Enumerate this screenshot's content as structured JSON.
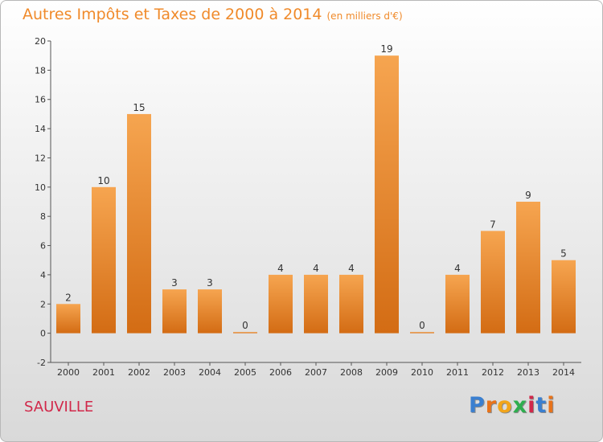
{
  "title": "Autres Impôts et Taxes de 2000 à 2014",
  "subtitle": "(en milliers d'€)",
  "town": "SAUVILLE",
  "brand": {
    "text": "Proxiti",
    "letter_colors": [
      "#3a7fd0",
      "#e8731a",
      "#f2a51a",
      "#2eae4e",
      "#d1284a",
      "#3a7fd0",
      "#e8731a"
    ]
  },
  "colors": {
    "bar_top": "#f6a550",
    "bar_bottom": "#d36c14",
    "axis": "#555555",
    "title": "#f08a2a",
    "town": "#d1284a"
  },
  "chart_data": {
    "type": "bar",
    "title": "Autres Impôts et Taxes de 2000 à 2014",
    "subtitle": "(en milliers d'€)",
    "xlabel": "",
    "ylabel": "",
    "categories": [
      "2000",
      "2001",
      "2002",
      "2003",
      "2004",
      "2005",
      "2006",
      "2007",
      "2008",
      "2009",
      "2010",
      "2011",
      "2012",
      "2013",
      "2014"
    ],
    "values": [
      2,
      10,
      15,
      3,
      3,
      0,
      4,
      4,
      4,
      19,
      0,
      4,
      7,
      9,
      5
    ],
    "ylim": [
      -2,
      20
    ],
    "yticks": [
      -2,
      0,
      2,
      4,
      6,
      8,
      10,
      12,
      14,
      16,
      18,
      20
    ],
    "grid": false,
    "legend": "none"
  }
}
